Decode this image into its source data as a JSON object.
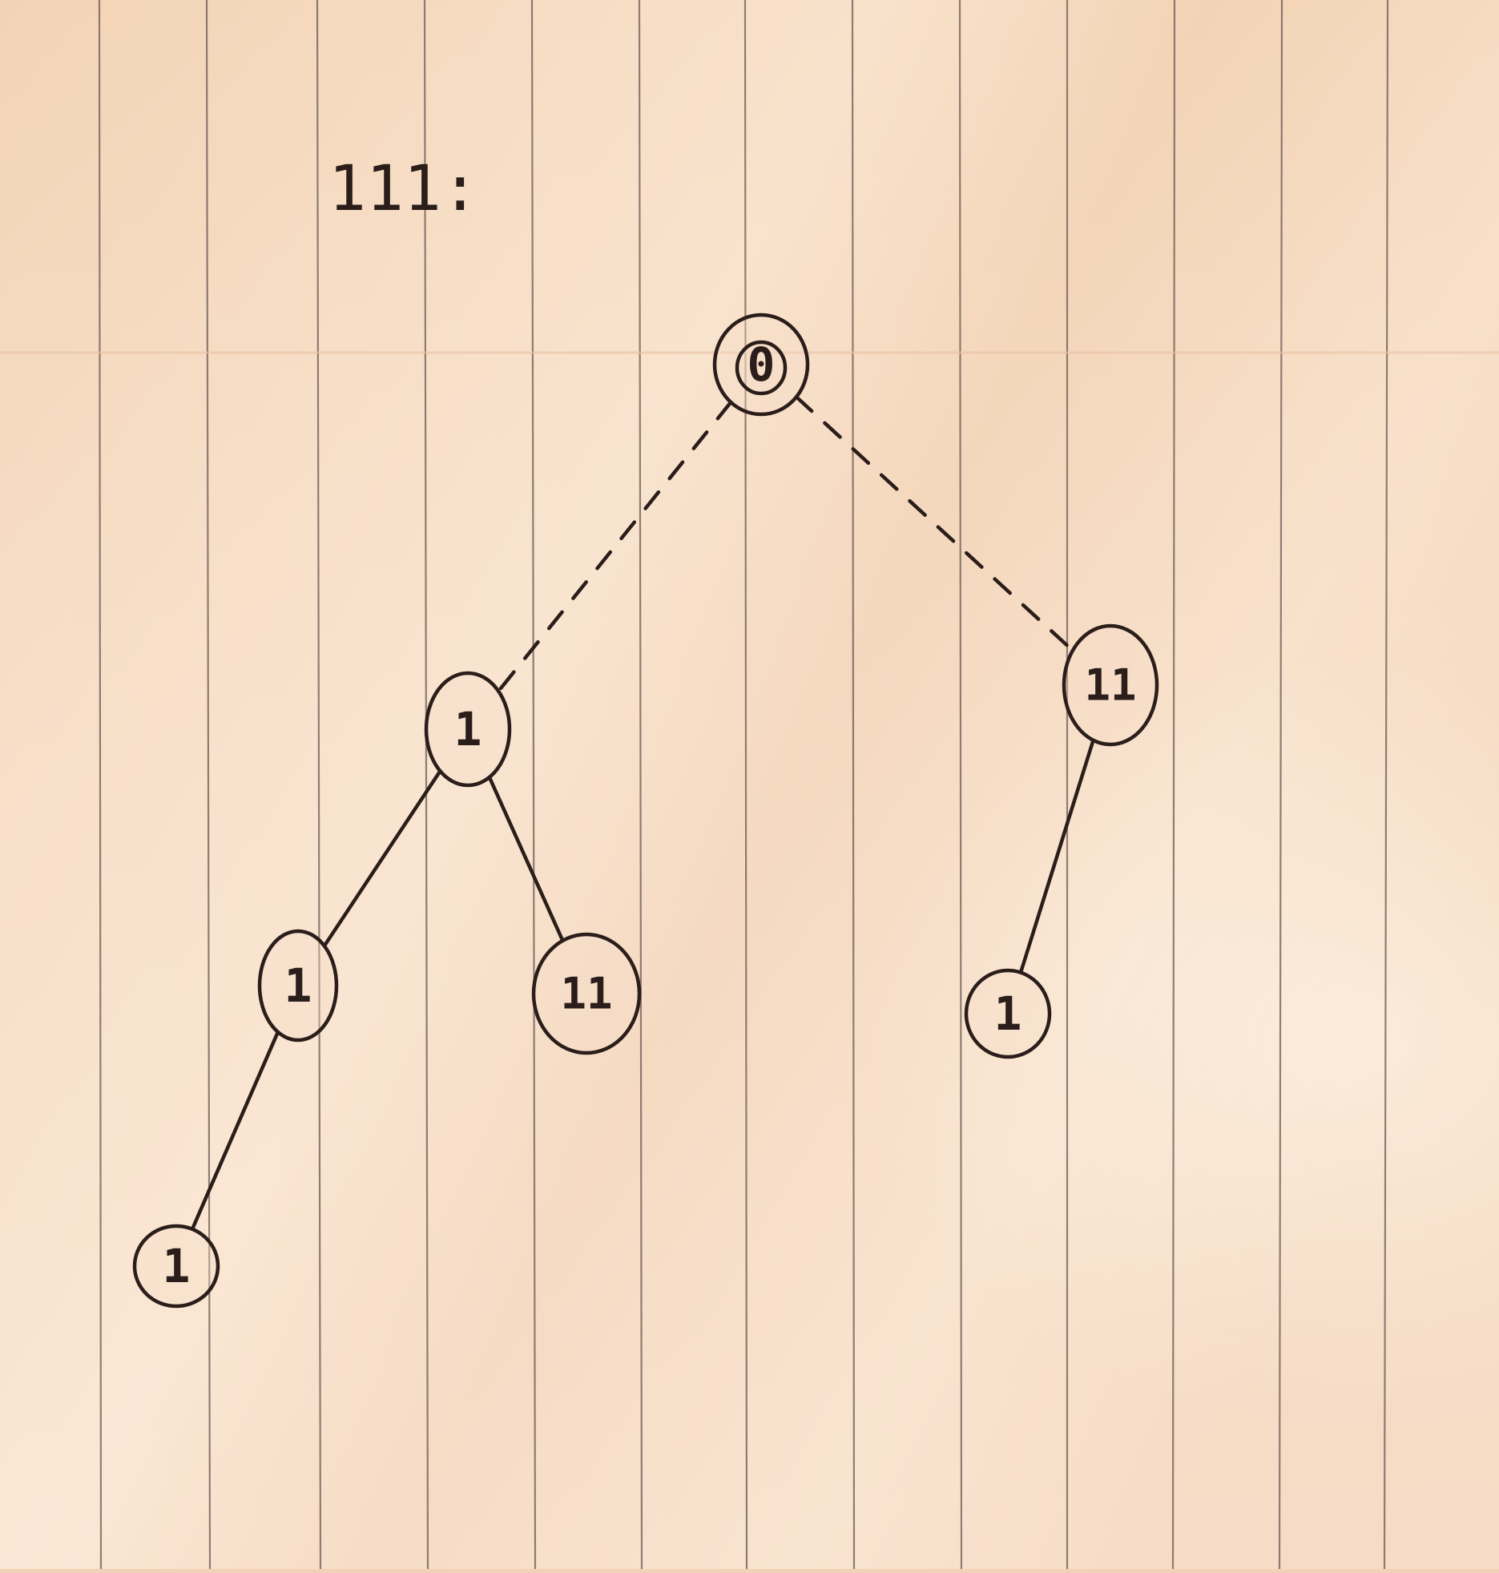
{
  "title": "111:",
  "tree": {
    "nodes": [
      {
        "id": "root",
        "label": "0"
      },
      {
        "id": "left",
        "label": "1"
      },
      {
        "id": "right",
        "label": "11"
      },
      {
        "id": "left-left",
        "label": "1"
      },
      {
        "id": "left-right",
        "label": "11"
      },
      {
        "id": "left-left-left",
        "label": "1"
      },
      {
        "id": "right-left",
        "label": "1"
      }
    ],
    "edges": [
      {
        "from": "root",
        "to": "left",
        "style": "dashed"
      },
      {
        "from": "root",
        "to": "right",
        "style": "dashed"
      },
      {
        "from": "left",
        "to": "left-left",
        "style": "solid"
      },
      {
        "from": "left",
        "to": "left-right",
        "style": "solid"
      },
      {
        "from": "left-left",
        "to": "left-left-left",
        "style": "solid"
      },
      {
        "from": "right",
        "to": "right-left",
        "style": "solid"
      }
    ]
  }
}
